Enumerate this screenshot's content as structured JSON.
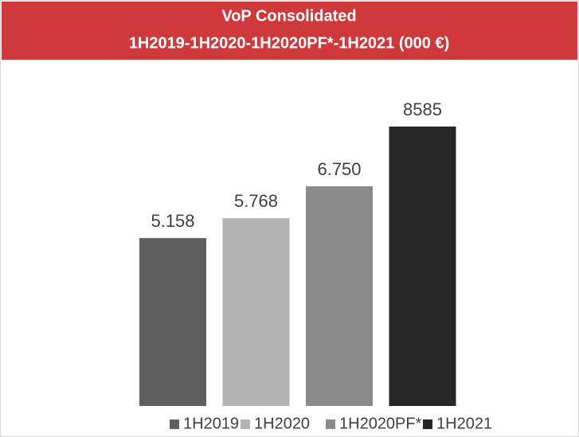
{
  "chart_data": {
    "type": "bar",
    "title": "VoP Consolidated",
    "subtitle": "1H2019-1H2020-1H2020PF*-1H2021 (000 €)",
    "categories": [
      "1H2019",
      "1H2020",
      "1H2020PF*",
      "1H2021"
    ],
    "values": [
      5158,
      5768,
      6750,
      8585
    ],
    "value_labels": [
      "5.158",
      "5.768",
      "6.750",
      "8585"
    ],
    "colors": [
      "#5f5f5f",
      "#b3b3b3",
      "#8a8a8a",
      "#262626"
    ],
    "legend": "bottom"
  }
}
